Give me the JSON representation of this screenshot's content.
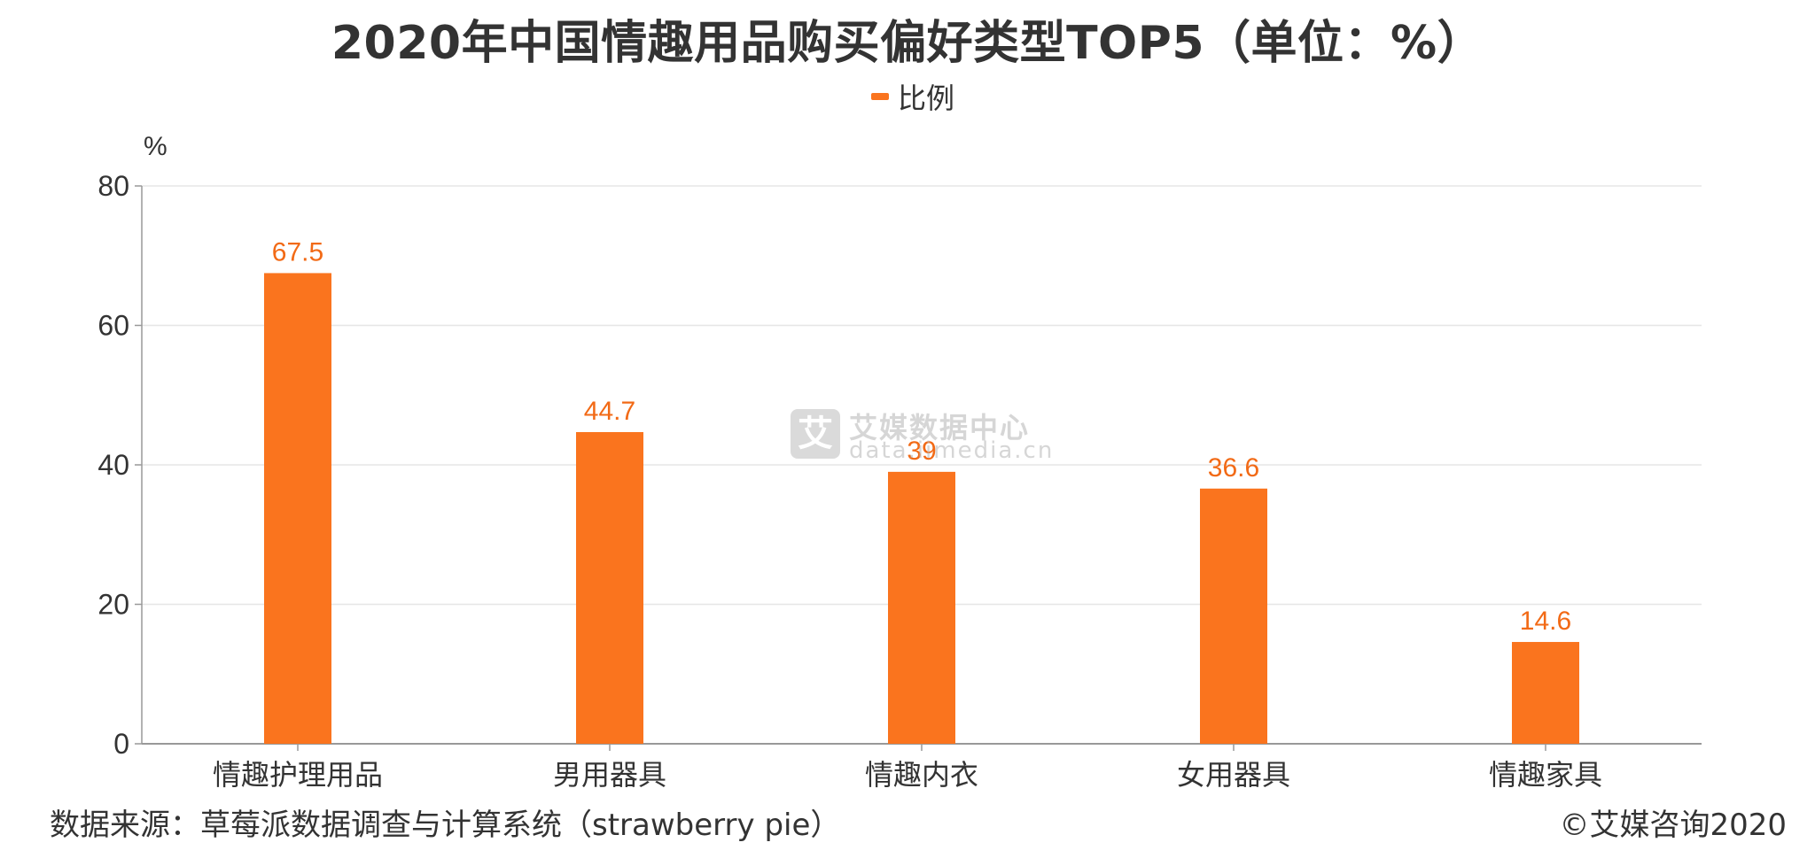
{
  "chart_data": {
    "type": "bar",
    "title": "2020年中国情趣用品购买偏好类型TOP5（单位：%）",
    "ylabel": "%",
    "xlabel": "",
    "categories": [
      "情趣护理用品",
      "男用器具",
      "情趣内衣",
      "女用器具",
      "情趣家具"
    ],
    "series": [
      {
        "name": "比例",
        "values": [
          67.5,
          44.7,
          39,
          36.6,
          14.6
        ],
        "color": "#FA741E"
      }
    ],
    "ylim": [
      0,
      80
    ],
    "yticks": [
      0,
      20,
      40,
      60,
      80
    ],
    "grid": true,
    "legend_position": "top-center",
    "data_labels": true
  },
  "legend": {
    "label": "比例"
  },
  "footer": {
    "source": "数据来源：草莓派数据调查与计算系统（strawberry pie）",
    "copyright": "©艾媒咨询2020"
  },
  "watermark": {
    "icon_char": "艾",
    "name": "艾媒数据中心",
    "domain": "data.iimedia.cn"
  },
  "colors": {
    "bar": "#FA741E",
    "label": "#F26A16",
    "grid": "#E6E6E6",
    "axis": "#999999",
    "text": "#333333"
  }
}
